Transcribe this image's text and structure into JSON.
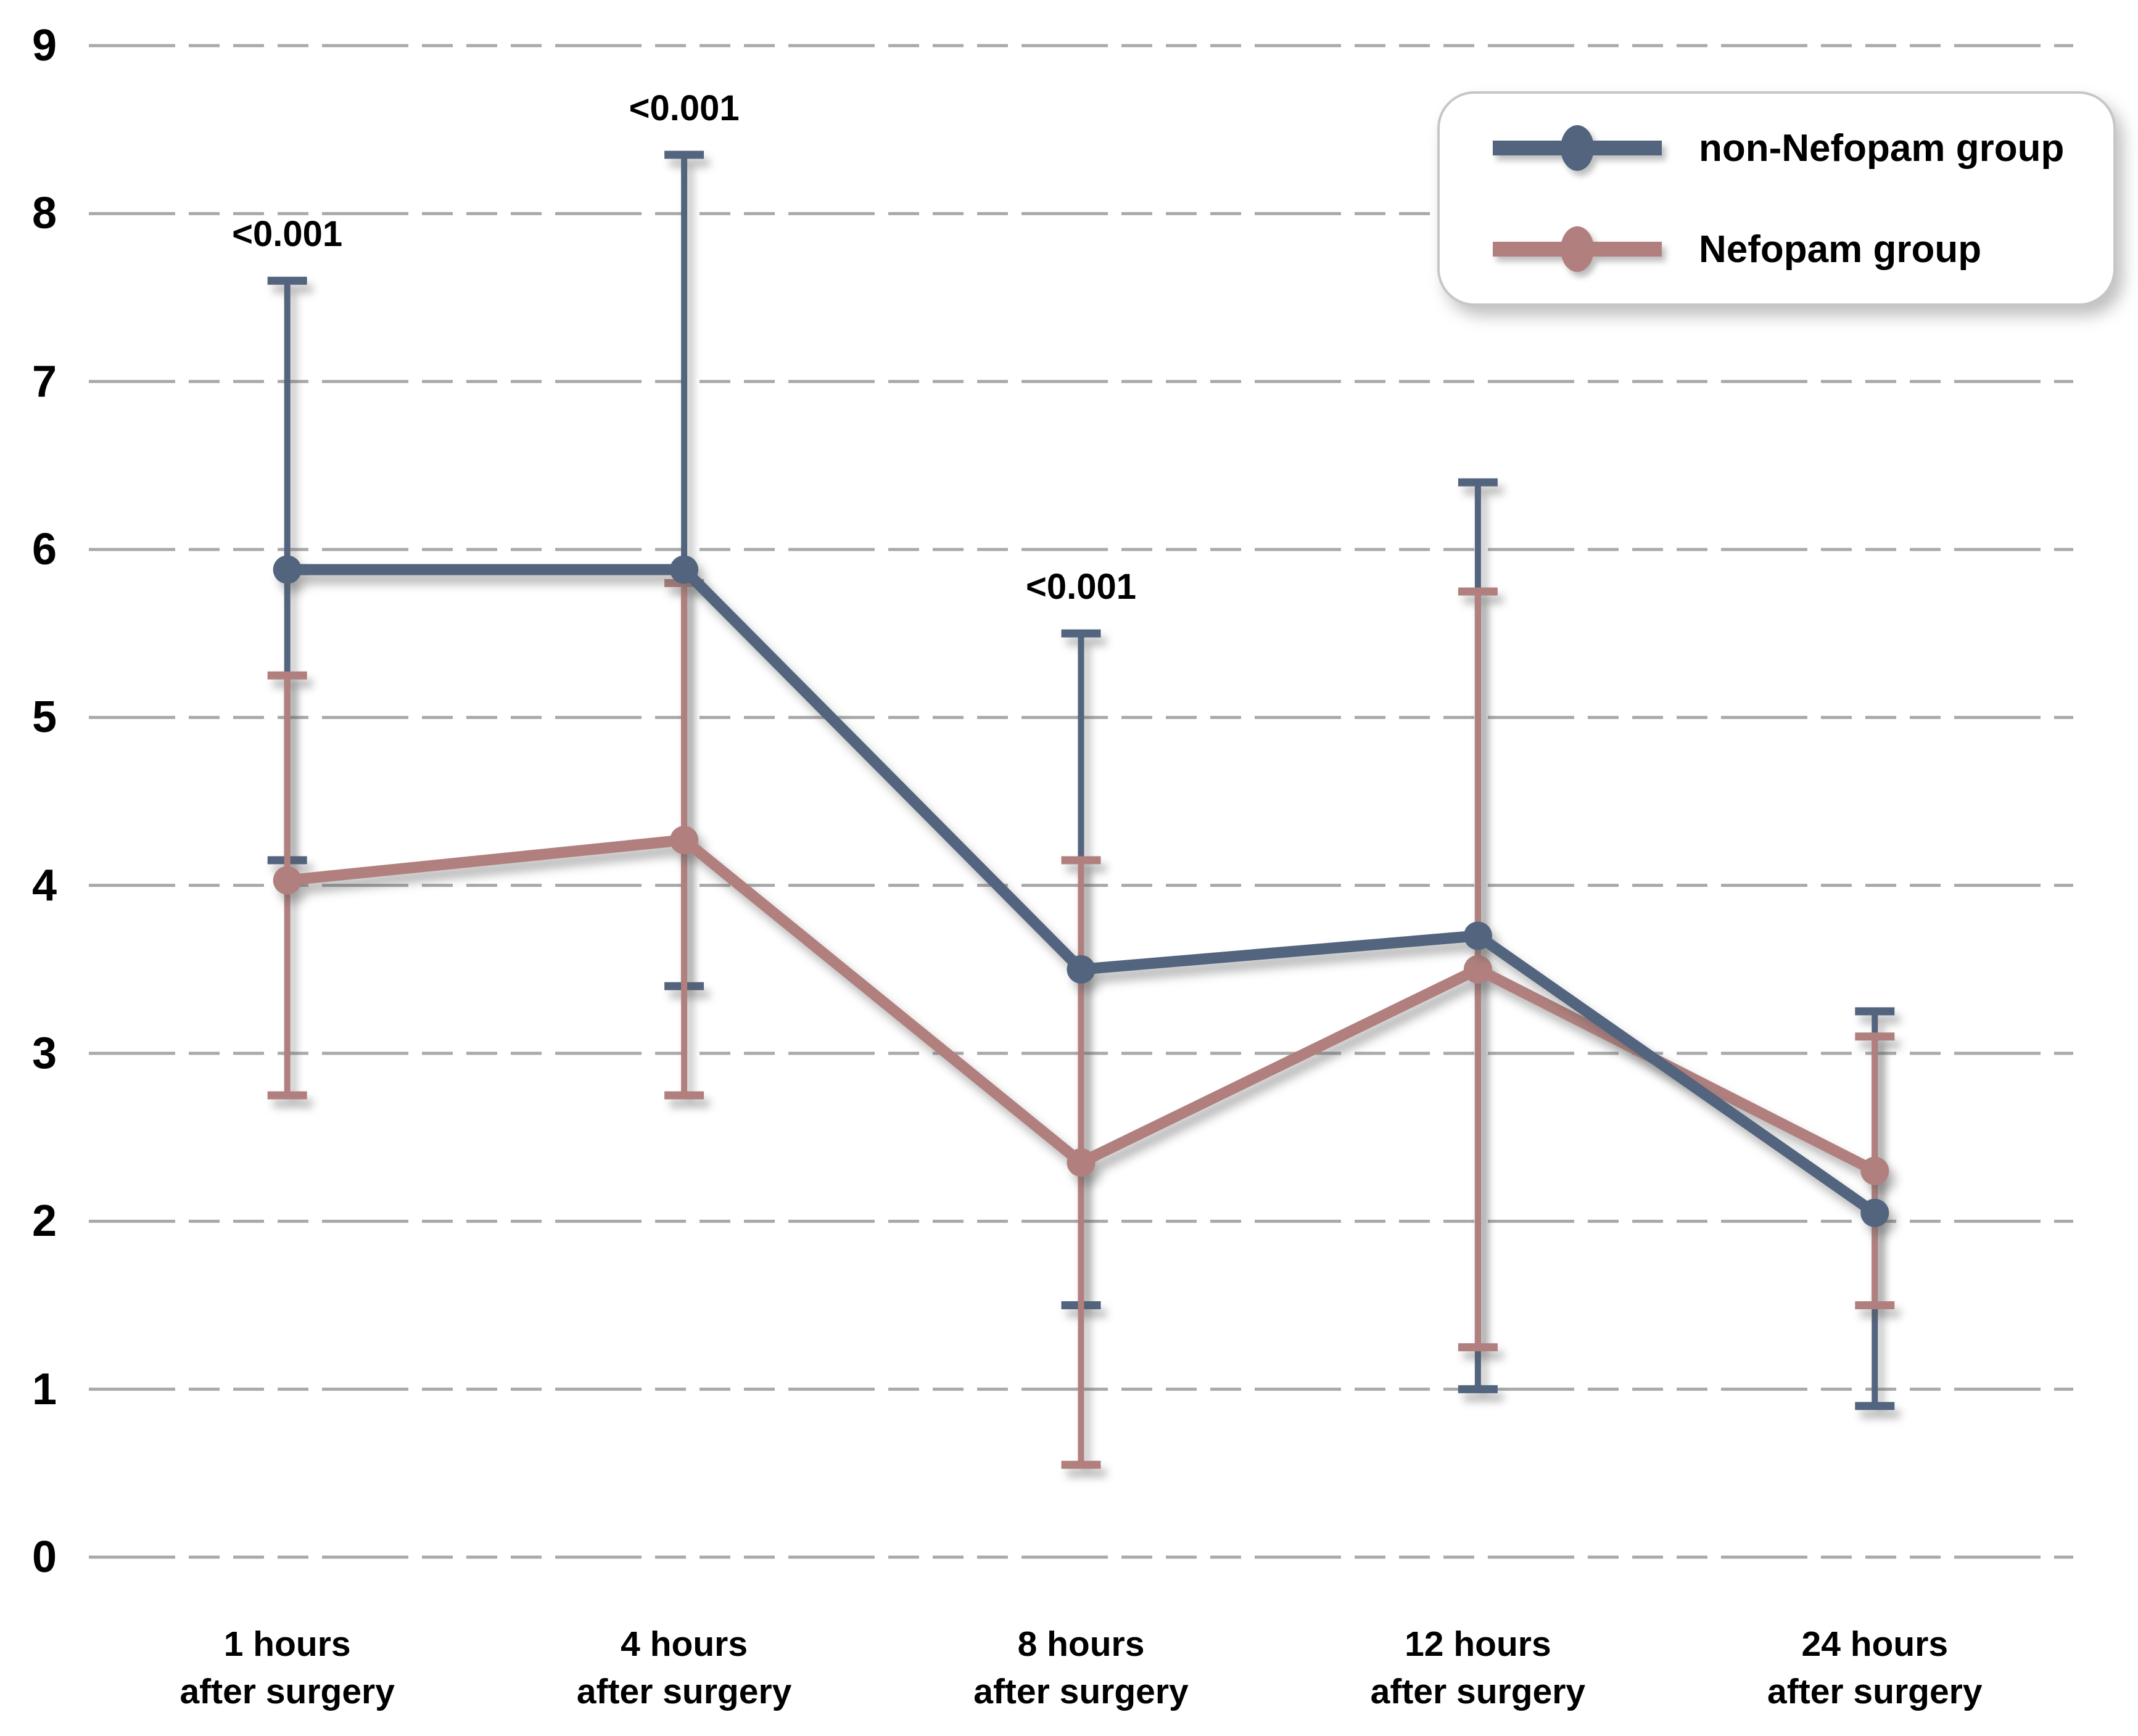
{
  "figure": {
    "background": "#ffffff",
    "title": ""
  },
  "chart_data": {
    "type": "line",
    "title": "",
    "xlabel": "",
    "ylabel": "",
    "grid": "dashed horizontal gridlines at every integer",
    "legend_position": "top-right",
    "colors": {
      "gridline": "#a9a9a9",
      "annotation_text": "#000000",
      "axis_text": "#000000",
      "legend_border": "#c6c6c6"
    },
    "y_axis": {
      "min": 0,
      "max": 9,
      "tick_labels": [
        "0",
        "1",
        "2",
        "3",
        "4",
        "5",
        "6",
        "7",
        "8",
        "9"
      ]
    },
    "categories": [
      {
        "line1": "1 hours",
        "line2": "after surgery"
      },
      {
        "line1": "4 hours",
        "line2": "after surgery"
      },
      {
        "line1": "8 hours",
        "line2": "after surgery"
      },
      {
        "line1": "12 hours",
        "line2": "after surgery"
      },
      {
        "line1": "24 hours",
        "line2": "after surgery"
      }
    ],
    "series": [
      {
        "name": "non-Nefopam group",
        "color": "#52647E",
        "values": [
          5.88,
          5.88,
          3.5,
          3.7,
          2.05
        ],
        "err_high": [
          7.6,
          8.35,
          5.5,
          6.4,
          3.25
        ],
        "err_low": [
          4.15,
          3.4,
          1.5,
          1.0,
          0.9
        ]
      },
      {
        "name": "Nefopam group",
        "color": "#B1807E",
        "values": [
          4.03,
          4.27,
          2.35,
          3.5,
          2.3
        ],
        "err_high": [
          5.25,
          5.8,
          4.15,
          5.75,
          3.1
        ],
        "err_low": [
          2.75,
          2.75,
          0.55,
          1.25,
          1.5
        ]
      }
    ],
    "annotations": [
      {
        "text": "<0.001",
        "category_index": 0
      },
      {
        "text": "<0.001",
        "category_index": 1
      },
      {
        "text": "<0.001",
        "category_index": 2
      }
    ]
  }
}
